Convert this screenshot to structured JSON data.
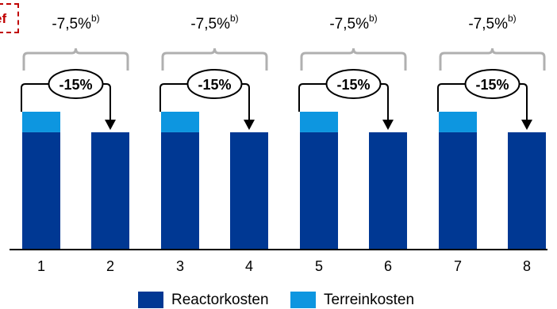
{
  "corner_tag": "ef",
  "chart_data": {
    "type": "bar",
    "stacked": true,
    "categories": [
      "1",
      "2",
      "3",
      "4",
      "5",
      "6",
      "7",
      "8"
    ],
    "series": [
      {
        "name": "Reactorkosten",
        "color": "#003893",
        "values": [
          85,
          85,
          85,
          85,
          85,
          85,
          85,
          85
        ]
      },
      {
        "name": "Terreinkosten",
        "color": "#0d96e0",
        "values": [
          15,
          0,
          15,
          0,
          15,
          0,
          15,
          0
        ]
      }
    ],
    "ylim": [
      0,
      100
    ],
    "groups": [
      {
        "bracket_label": "-7,5%",
        "bracket_sup": "b)",
        "arrow_label": "-15%"
      },
      {
        "bracket_label": "-7,5%",
        "bracket_sup": "b)",
        "arrow_label": "-15%"
      },
      {
        "bracket_label": "-7,5%",
        "bracket_sup": "b)",
        "arrow_label": "-15%"
      },
      {
        "bracket_label": "-7,5%",
        "bracket_sup": "b)",
        "arrow_label": "-15%"
      }
    ],
    "legend_position": "bottom-center"
  }
}
